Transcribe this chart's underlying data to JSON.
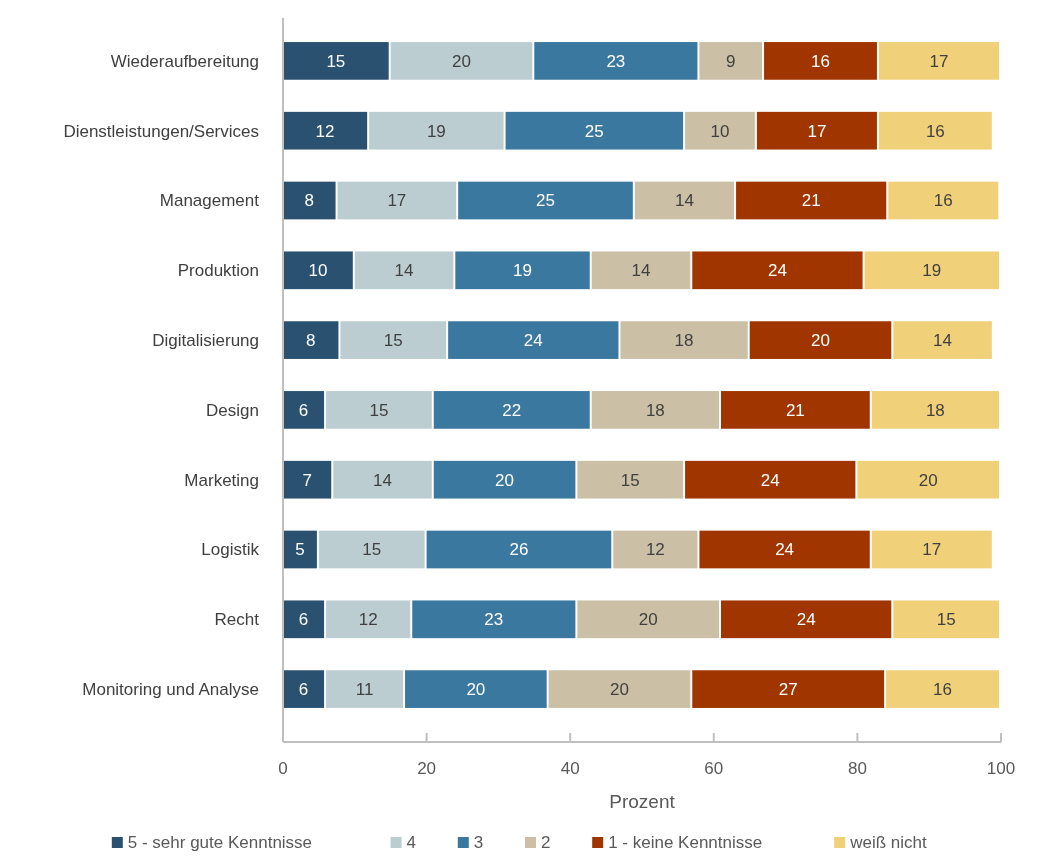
{
  "chart_data": {
    "type": "bar",
    "orientation": "horizontal",
    "stacked": true,
    "xlabel": "Prozent",
    "categories": [
      "Wiederaufbereitung",
      "Dienstleistungen/Services",
      "Management",
      "Produktion",
      "Digitalisierung",
      "Design",
      "Marketing",
      "Logistik",
      "Recht",
      "Monitoring und Analyse"
    ],
    "series": [
      {
        "name": "5 - sehr gute Kenntnisse",
        "color": "#2a5170",
        "values": [
          15,
          12,
          7.6,
          10,
          8,
          6,
          7,
          5,
          6,
          6
        ],
        "value_labels": [
          "15",
          "12",
          "8",
          "10",
          "8",
          "6",
          "7",
          "5",
          "6",
          "6"
        ]
      },
      {
        "name": "4",
        "color": "#bccdd2",
        "values": [
          20,
          19,
          16.8,
          14,
          15,
          15,
          14,
          15,
          12,
          11
        ],
        "value_labels": [
          "20",
          "19",
          "17",
          "14",
          "15",
          "15",
          "14",
          "15",
          "12",
          "11"
        ]
      },
      {
        "name": "3",
        "color": "#3b78a0",
        "values": [
          23,
          25,
          24.6,
          19,
          24,
          22,
          20,
          26,
          23,
          20
        ],
        "value_labels": [
          "23",
          "25",
          "25",
          "19",
          "24",
          "22",
          "20",
          "26",
          "23",
          "20"
        ]
      },
      {
        "name": "2",
        "color": "#cbbfa6",
        "values": [
          9,
          10,
          14.1,
          14,
          18,
          18,
          15,
          12,
          20,
          20
        ],
        "value_labels": [
          "9",
          "10",
          "14",
          "14",
          "18",
          "18",
          "15",
          "12",
          "20",
          "20"
        ]
      },
      {
        "name": "1 - keine Kenntnisse",
        "color": "#a03500",
        "values": [
          16,
          17,
          21.2,
          24,
          20,
          21,
          24,
          24,
          24,
          27
        ],
        "value_labels": [
          "16",
          "17",
          "21",
          "24",
          "20",
          "21",
          "24",
          "24",
          "24",
          "27"
        ]
      },
      {
        "name": "weiß nicht",
        "color": "#f0d17a",
        "values": [
          17,
          16,
          15.6,
          19,
          14,
          18,
          20,
          17,
          15,
          16
        ],
        "value_labels": [
          "17",
          "16",
          "16",
          "19",
          "14",
          "18",
          "20",
          "17",
          "15",
          "16"
        ]
      }
    ],
    "xlim": [
      0,
      100
    ],
    "xticks": [
      0,
      20,
      40,
      60,
      80,
      100
    ],
    "grid": false,
    "legend": "bottom"
  }
}
